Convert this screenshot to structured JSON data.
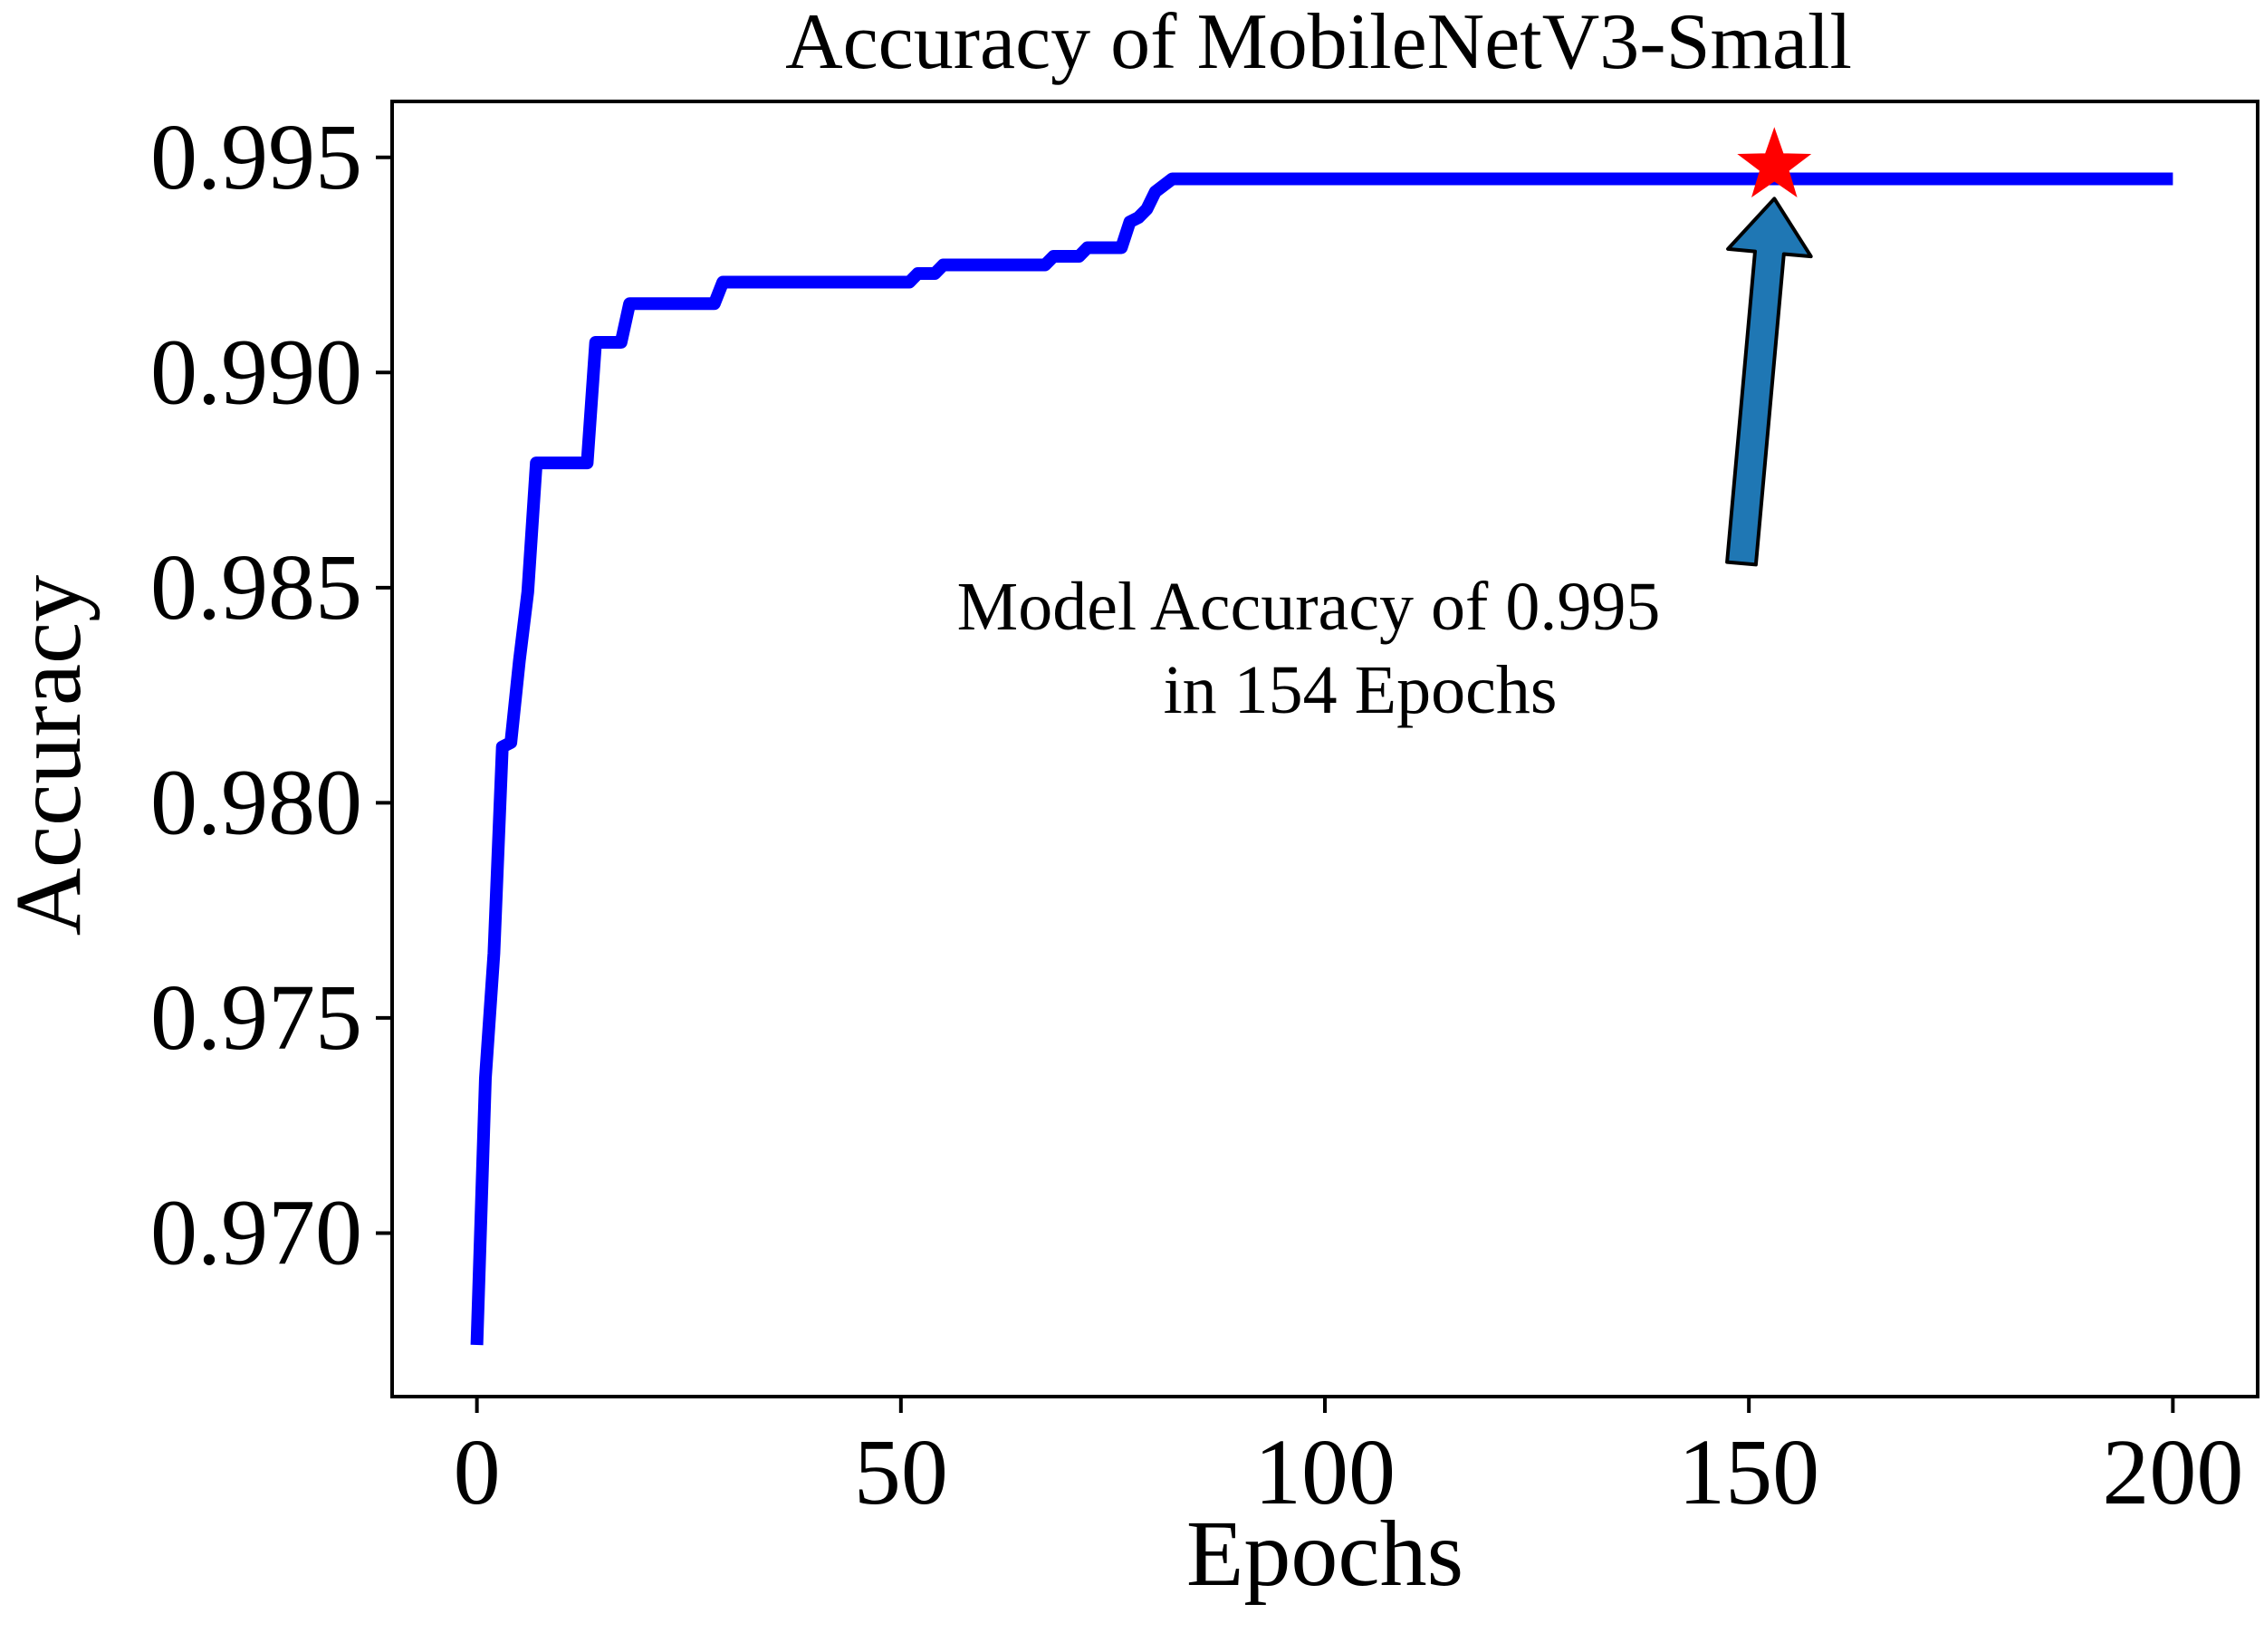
{
  "chart_data": {
    "type": "line",
    "title": "Accuracy of MobileNetV3-Small",
    "xlabel": "Epochs",
    "ylabel": "Accuracy",
    "xlim": [
      -10,
      210
    ],
    "ylim": [
      0.9662,
      0.9963
    ],
    "xticks": [
      0,
      50,
      100,
      150,
      200
    ],
    "xtick_labels": [
      "0",
      "50",
      "100",
      "150",
      "200"
    ],
    "yticks": [
      0.97,
      0.975,
      0.98,
      0.985,
      0.99,
      0.995
    ],
    "ytick_labels": [
      "0.970",
      "0.975",
      "0.980",
      "0.985",
      "0.990",
      "0.995"
    ],
    "grid": false,
    "legend": "none",
    "series": [
      {
        "color": "#0000ff",
        "points": [
          [
            0,
            0.9674
          ],
          [
            1,
            0.9736
          ],
          [
            2,
            0.9765
          ],
          [
            3,
            0.9813
          ],
          [
            4,
            0.9814
          ],
          [
            5,
            0.9833
          ],
          [
            6,
            0.9849
          ],
          [
            7,
            0.9879
          ],
          [
            13,
            0.9879
          ],
          [
            14,
            0.9907
          ],
          [
            17,
            0.9907
          ],
          [
            18,
            0.9916
          ],
          [
            28,
            0.9916
          ],
          [
            29,
            0.9921
          ],
          [
            51,
            0.9921
          ],
          [
            52,
            0.9923
          ],
          [
            54,
            0.9923
          ],
          [
            55,
            0.9925
          ],
          [
            67,
            0.9925
          ],
          [
            68,
            0.9927
          ],
          [
            71,
            0.9927
          ],
          [
            72,
            0.9929
          ],
          [
            76,
            0.9929
          ],
          [
            77,
            0.9935
          ],
          [
            78,
            0.9936
          ],
          [
            79,
            0.9938
          ],
          [
            80,
            0.9942
          ],
          [
            82,
            0.9945
          ],
          [
            85,
            0.9945
          ],
          [
            200,
            0.9945
          ]
        ]
      }
    ],
    "marker": {
      "x": 153,
      "y": 0.9948,
      "shape": "star",
      "color": "#ff0000"
    },
    "annotation": {
      "lines": [
        "Model Accuracy of 0.995",
        "in 154 Epochs"
      ],
      "arrow_color": "#1f77b4"
    }
  }
}
